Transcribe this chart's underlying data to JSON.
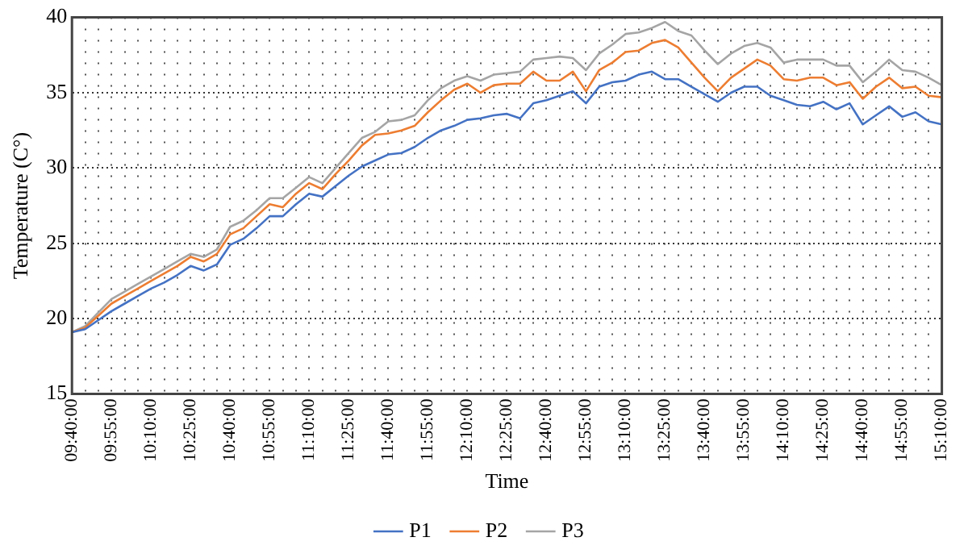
{
  "chart_data": {
    "type": "line",
    "xlabel": "Time",
    "ylabel": "Temperature (C°)",
    "categories": [
      "09:40:00",
      null,
      null,
      "09:55:00",
      null,
      null,
      "10:10:00",
      null,
      null,
      "10:25:00",
      null,
      null,
      "10:40:00",
      null,
      null,
      "10:55:00",
      null,
      null,
      "11:10:00",
      null,
      null,
      "11:25:00",
      null,
      null,
      "11:40:00",
      null,
      null,
      "11:55:00",
      null,
      null,
      "12:10:00",
      null,
      null,
      "12:25:00",
      null,
      null,
      "12:40:00",
      null,
      null,
      "12:55:00",
      null,
      null,
      "13:10:00",
      null,
      null,
      "13:25:00",
      null,
      null,
      "13:40:00",
      null,
      null,
      "13:55:00",
      null,
      null,
      "14:10:00",
      null,
      null,
      "14:25:00",
      null,
      null,
      "14:40:00",
      null,
      null,
      "14:55:00",
      null,
      null,
      "15:10:00"
    ],
    "series": [
      {
        "name": "P1",
        "color": "#4472c4",
        "values": [
          19.1,
          19.3,
          19.9,
          20.5,
          21.0,
          21.5,
          22.0,
          22.4,
          22.9,
          23.5,
          23.2,
          23.6,
          24.9,
          25.3,
          26.0,
          26.8,
          26.8,
          27.6,
          28.3,
          28.1,
          28.8,
          29.5,
          30.1,
          30.5,
          30.9,
          31.0,
          31.4,
          32.0,
          32.5,
          32.8,
          33.2,
          33.3,
          33.5,
          33.6,
          33.3,
          34.3,
          34.5,
          34.8,
          35.1,
          34.3,
          35.4,
          35.7,
          35.8,
          36.2,
          36.4,
          35.9,
          35.9,
          35.4,
          34.9,
          34.4,
          35.0,
          35.4,
          35.4,
          34.8,
          34.5,
          34.2,
          34.1,
          34.4,
          33.9,
          34.3,
          32.9,
          33.5,
          34.1,
          33.4,
          33.7,
          33.1,
          32.9
        ]
      },
      {
        "name": "P2",
        "color": "#ed7d31",
        "values": [
          19.1,
          19.4,
          20.2,
          21.0,
          21.5,
          22.0,
          22.5,
          23.0,
          23.5,
          24.1,
          23.8,
          24.3,
          25.6,
          26.0,
          26.8,
          27.6,
          27.4,
          28.3,
          29.0,
          28.6,
          29.6,
          30.5,
          31.5,
          32.2,
          32.3,
          32.5,
          32.8,
          33.7,
          34.5,
          35.2,
          35.6,
          35.0,
          35.5,
          35.6,
          35.6,
          36.4,
          35.8,
          35.8,
          36.4,
          35.1,
          36.5,
          37.0,
          37.7,
          37.8,
          38.3,
          38.5,
          38.0,
          37.0,
          36.0,
          35.1,
          36.0,
          36.6,
          37.2,
          36.8,
          35.9,
          35.8,
          36.0,
          36.0,
          35.5,
          35.7,
          34.6,
          35.4,
          36.0,
          35.3,
          35.4,
          34.8,
          34.7
        ]
      },
      {
        "name": "P3",
        "color": "#a5a5a5",
        "values": [
          19.1,
          19.5,
          20.4,
          21.3,
          21.8,
          22.3,
          22.8,
          23.3,
          23.8,
          24.3,
          24.1,
          24.6,
          26.1,
          26.5,
          27.2,
          28.0,
          28.0,
          28.7,
          29.4,
          29.0,
          30.0,
          31.0,
          32.0,
          32.4,
          33.1,
          33.2,
          33.5,
          34.5,
          35.3,
          35.8,
          36.1,
          35.8,
          36.2,
          36.3,
          36.4,
          37.2,
          37.3,
          37.4,
          37.3,
          36.5,
          37.6,
          38.2,
          38.9,
          39.0,
          39.3,
          39.7,
          39.1,
          38.8,
          37.8,
          36.9,
          37.6,
          38.1,
          38.3,
          38.0,
          37.0,
          37.2,
          37.2,
          37.2,
          36.8,
          36.8,
          35.7,
          36.4,
          37.2,
          36.5,
          36.4,
          36.0,
          35.5
        ]
      }
    ],
    "ylim": [
      15,
      40
    ],
    "yticks": [
      15,
      20,
      25,
      30,
      35,
      40
    ],
    "grid": true,
    "legend": "bottom",
    "marker": "none",
    "line_style": "solid"
  }
}
